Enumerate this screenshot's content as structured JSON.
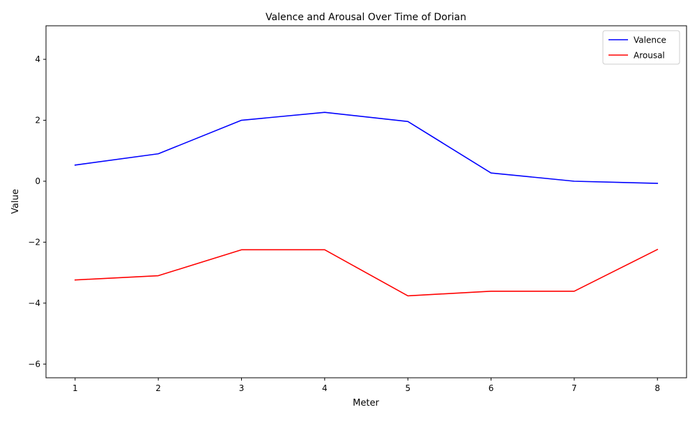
{
  "chart_data": {
    "type": "line",
    "title": "Valence and Arousal Over Time of Dorian",
    "xlabel": "Meter",
    "ylabel": "Value",
    "x": [
      1,
      2,
      3,
      4,
      5,
      6,
      7,
      8
    ],
    "xlim": [
      0.65,
      8.35
    ],
    "ylim": [
      -6.45,
      5.1
    ],
    "xticks": [
      1,
      2,
      3,
      4,
      5,
      6,
      7,
      8
    ],
    "yticks": [
      -6,
      -4,
      -2,
      0,
      2,
      4
    ],
    "ytick_labels": [
      "−6",
      "−4",
      "−2",
      "0",
      "2",
      "4"
    ],
    "grid": false,
    "legend_position": "top-right",
    "series": [
      {
        "name": "Valence",
        "color": "#0000ff",
        "values": [
          0.53,
          0.9,
          2.0,
          2.26,
          1.96,
          0.27,
          0.0,
          -0.07
        ]
      },
      {
        "name": "Arousal",
        "color": "#ff0000",
        "values": [
          -3.24,
          -3.1,
          -2.25,
          -2.25,
          -3.76,
          -3.61,
          -3.61,
          -2.24
        ]
      }
    ]
  }
}
